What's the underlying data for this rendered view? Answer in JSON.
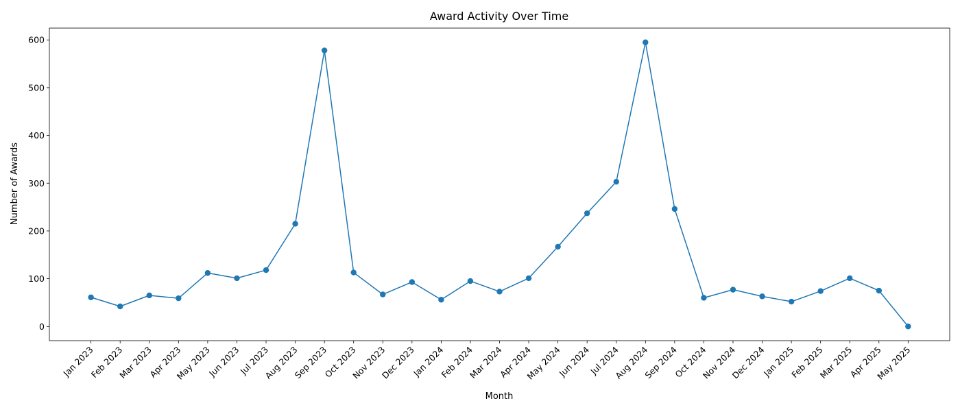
{
  "chart_data": {
    "type": "line",
    "title": "Award Activity Over Time",
    "xlabel": "Month",
    "ylabel": "Number of Awards",
    "categories": [
      "Jan 2023",
      "Feb 2023",
      "Mar 2023",
      "Apr 2023",
      "May 2023",
      "Jun 2023",
      "Jul 2023",
      "Aug 2023",
      "Sep 2023",
      "Oct 2023",
      "Nov 2023",
      "Dec 2023",
      "Jan 2024",
      "Feb 2024",
      "Mar 2024",
      "Apr 2024",
      "May 2024",
      "Jun 2024",
      "Jul 2024",
      "Aug 2024",
      "Sep 2024",
      "Oct 2024",
      "Nov 2024",
      "Dec 2024",
      "Jan 2025",
      "Feb 2025",
      "Mar 2025",
      "Apr 2025",
      "May 2025"
    ],
    "series": [
      {
        "values": [
          61,
          42,
          65,
          59,
          112,
          101,
          118,
          215,
          578,
          113,
          67,
          93,
          56,
          95,
          73,
          101,
          167,
          237,
          303,
          595,
          246,
          60,
          77,
          63,
          52,
          74,
          101,
          75,
          0
        ],
        "color": "#1f77b4",
        "marker": "circle"
      }
    ],
    "yticks": [
      0,
      100,
      200,
      300,
      400,
      500,
      600
    ],
    "ylim": [
      -29.75,
      624.75
    ],
    "grid": false,
    "legend": "none"
  }
}
